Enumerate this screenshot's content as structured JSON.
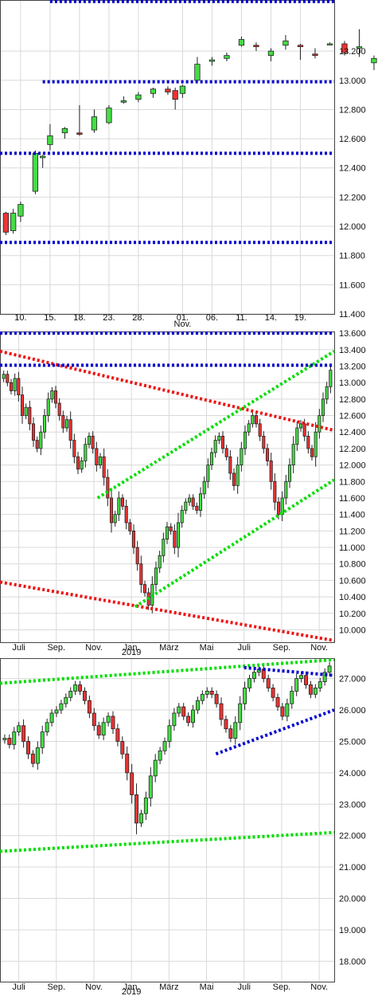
{
  "chart_data": [
    {
      "type": "candlestick",
      "title": "",
      "y_ticks": [
        "13.200",
        "13.000",
        "12.800",
        "12.600",
        "12.400",
        "12.200",
        "12.000",
        "11.800",
        "11.600",
        "11.400"
      ],
      "ylim": [
        11.4,
        13.55
      ],
      "x_tick_labels": [
        {
          "label": "10.",
          "day": 2
        },
        {
          "label": "15.",
          "day": 4
        },
        {
          "label": "18.",
          "day": 6
        },
        {
          "label": "23.",
          "day": 8
        },
        {
          "label": "28.",
          "day": 10
        },
        {
          "label": "01.",
          "day": 13
        },
        {
          "label": "06.",
          "day": 15
        },
        {
          "label": "11.",
          "day": 17
        },
        {
          "label": "14.",
          "day": 19
        },
        {
          "label": "19.",
          "day": 21
        }
      ],
      "x_sub_labels": [
        {
          "label": "Nov.",
          "day": 13
        }
      ],
      "x_range": [
        0.6,
        23.3
      ],
      "candles": [
        {
          "d": 1,
          "o": 12.09,
          "h": 12.1,
          "l": 11.94,
          "c": 11.96
        },
        {
          "d": 1.5,
          "o": 11.97,
          "h": 12.12,
          "l": 11.95,
          "c": 12.09
        },
        {
          "d": 2,
          "o": 12.07,
          "h": 12.17,
          "l": 12.03,
          "c": 12.15
        },
        {
          "d": 3,
          "o": 12.24,
          "h": 12.52,
          "l": 12.22,
          "c": 12.5
        },
        {
          "d": 3.5,
          "o": 12.47,
          "h": 12.49,
          "l": 12.4,
          "c": 12.48
        },
        {
          "d": 4,
          "o": 12.56,
          "h": 12.7,
          "l": 12.52,
          "c": 12.62
        },
        {
          "d": 5,
          "o": 12.64,
          "h": 12.68,
          "l": 12.6,
          "c": 12.67
        },
        {
          "d": 6,
          "o": 12.64,
          "h": 12.83,
          "l": 12.62,
          "c": 12.63
        },
        {
          "d": 7,
          "o": 12.66,
          "h": 12.8,
          "l": 12.64,
          "c": 12.75
        },
        {
          "d": 8,
          "o": 12.71,
          "h": 12.83,
          "l": 12.7,
          "c": 12.81
        },
        {
          "d": 9,
          "o": 12.85,
          "h": 12.89,
          "l": 12.84,
          "c": 12.86
        },
        {
          "d": 10,
          "o": 12.87,
          "h": 12.92,
          "l": 12.85,
          "c": 12.9
        },
        {
          "d": 11,
          "o": 12.91,
          "h": 12.95,
          "l": 12.88,
          "c": 12.94
        },
        {
          "d": 12,
          "o": 12.94,
          "h": 12.96,
          "l": 12.9,
          "c": 12.92
        },
        {
          "d": 12.5,
          "o": 12.93,
          "h": 12.95,
          "l": 12.8,
          "c": 12.87
        },
        {
          "d": 13,
          "o": 12.91,
          "h": 12.97,
          "l": 12.88,
          "c": 12.96
        },
        {
          "d": 14,
          "o": 13.0,
          "h": 13.16,
          "l": 12.98,
          "c": 13.11
        },
        {
          "d": 15,
          "o": 13.13,
          "h": 13.16,
          "l": 13.1,
          "c": 13.14
        },
        {
          "d": 16,
          "o": 13.15,
          "h": 13.19,
          "l": 13.13,
          "c": 13.17
        },
        {
          "d": 17,
          "o": 13.24,
          "h": 13.3,
          "l": 13.23,
          "c": 13.28
        },
        {
          "d": 18,
          "o": 13.24,
          "h": 13.26,
          "l": 13.2,
          "c": 13.23
        },
        {
          "d": 19,
          "o": 13.17,
          "h": 13.22,
          "l": 13.13,
          "c": 13.2
        },
        {
          "d": 20,
          "o": 13.24,
          "h": 13.31,
          "l": 13.21,
          "c": 13.27
        },
        {
          "d": 21,
          "o": 13.24,
          "h": 13.25,
          "l": 13.14,
          "c": 13.23
        },
        {
          "d": 22,
          "o": 13.18,
          "h": 13.22,
          "l": 13.15,
          "c": 13.17
        },
        {
          "d": 23,
          "o": 13.25,
          "h": 13.26,
          "l": 13.24,
          "c": 13.25
        },
        {
          "d": 24,
          "o": 13.25,
          "h": 13.27,
          "l": 13.17,
          "c": 13.19
        },
        {
          "d": 25,
          "o": 13.22,
          "h": 13.35,
          "l": 13.16,
          "c": 13.23
        },
        {
          "d": 26,
          "o": 13.12,
          "h": 13.17,
          "l": 13.07,
          "c": 13.15
        }
      ],
      "lines": [
        {
          "color": "#0000cc",
          "style": "dotted",
          "points": [
            [
              4,
              13.54
            ],
            [
              23.3,
              13.54
            ]
          ]
        },
        {
          "color": "#0000cc",
          "style": "dotted",
          "points": [
            [
              3.5,
              12.99
            ],
            [
              23.3,
              12.99
            ]
          ]
        },
        {
          "color": "#0000cc",
          "style": "dotted",
          "points": [
            [
              0.6,
              12.5
            ],
            [
              23.3,
              12.5
            ]
          ]
        },
        {
          "color": "#0000cc",
          "style": "dotted",
          "points": [
            [
              0.6,
              11.89
            ],
            [
              23.3,
              11.89
            ]
          ]
        }
      ]
    },
    {
      "type": "candlestick",
      "title": "",
      "y_ticks": [
        "13.600",
        "13.400",
        "13.200",
        "13.000",
        "12.800",
        "12.600",
        "12.400",
        "12.200",
        "12.000",
        "11.800",
        "11.600",
        "11.400",
        "11.200",
        "11.000",
        "10.800",
        "10.600",
        "10.400",
        "10.200",
        "10.000"
      ],
      "ylim": [
        9.85,
        13.62
      ],
      "x_tick_labels": [
        {
          "label": "Juli",
          "month": 1
        },
        {
          "label": "Sep.",
          "month": 3
        },
        {
          "label": "Nov.",
          "month": 5
        },
        {
          "label": "Jan.",
          "month": 7
        },
        {
          "label": "März",
          "month": 9
        },
        {
          "label": "Mai",
          "month": 11
        },
        {
          "label": "Juli",
          "month": 13
        },
        {
          "label": "Sep.",
          "month": 15
        },
        {
          "label": "Nov.",
          "month": 17
        }
      ],
      "x_sub_labels": [
        {
          "label": "2019",
          "month": 7
        }
      ],
      "x_range": [
        0,
        17.8
      ],
      "closes": [
        13.1,
        13.0,
        12.9,
        13.05,
        12.85,
        12.6,
        12.7,
        12.5,
        12.3,
        12.2,
        12.4,
        12.6,
        12.8,
        12.9,
        12.75,
        12.6,
        12.45,
        12.55,
        12.3,
        12.1,
        11.95,
        12.05,
        12.25,
        12.35,
        12.2,
        12.0,
        12.1,
        11.85,
        11.6,
        11.3,
        11.4,
        11.6,
        11.5,
        11.3,
        11.2,
        11.0,
        10.8,
        10.55,
        10.45,
        10.3,
        10.55,
        10.75,
        10.9,
        11.1,
        11.25,
        11.2,
        11.0,
        11.3,
        11.45,
        11.55,
        11.6,
        11.5,
        11.45,
        11.65,
        11.8,
        12.0,
        12.15,
        12.3,
        12.35,
        12.2,
        12.1,
        11.9,
        11.75,
        12.0,
        12.2,
        12.4,
        12.5,
        12.6,
        12.5,
        12.35,
        12.2,
        12.05,
        11.8,
        11.55,
        11.4,
        11.6,
        11.8,
        12.0,
        12.25,
        12.45,
        12.5,
        12.35,
        12.2,
        12.1,
        12.4,
        12.6,
        12.8,
        12.95,
        13.15
      ],
      "lines": [
        {
          "color": "#ee1111",
          "style": "dotted",
          "points": [
            [
              0,
              13.38
            ],
            [
              17.8,
              12.42
            ]
          ]
        },
        {
          "color": "#ee1111",
          "style": "dotted",
          "points": [
            [
              0,
              10.58
            ],
            [
              17.8,
              9.87
            ]
          ]
        },
        {
          "color": "#00dd00",
          "style": "dotted",
          "points": [
            [
              5.2,
              11.6
            ],
            [
              17.8,
              13.38
            ]
          ]
        },
        {
          "color": "#00dd00",
          "style": "dotted",
          "points": [
            [
              7.2,
              10.28
            ],
            [
              17.8,
              11.82
            ]
          ]
        },
        {
          "color": "#0000cc",
          "style": "dotted",
          "points": [
            [
              0,
              13.6
            ],
            [
              17.8,
              13.6
            ]
          ]
        },
        {
          "color": "#0000cc",
          "style": "dotted",
          "points": [
            [
              0,
              13.21
            ],
            [
              17.8,
              13.21
            ]
          ]
        }
      ]
    },
    {
      "type": "candlestick",
      "title": "",
      "y_ticks": [
        "27.000",
        "26.000",
        "25.000",
        "24.000",
        "23.000",
        "22.000",
        "21.000",
        "20.000",
        "19.000",
        "18.000"
      ],
      "ylim": [
        17.35,
        27.65
      ],
      "x_tick_labels": [
        {
          "label": "Juli",
          "month": 1
        },
        {
          "label": "Sep.",
          "month": 3
        },
        {
          "label": "Nov.",
          "month": 5
        },
        {
          "label": "Jan.",
          "month": 7
        },
        {
          "label": "März",
          "month": 9
        },
        {
          "label": "Mai",
          "month": 11
        },
        {
          "label": "Juli",
          "month": 13
        },
        {
          "label": "Sep.",
          "month": 15
        },
        {
          "label": "Nov.",
          "month": 17
        }
      ],
      "x_sub_labels": [
        {
          "label": "2019",
          "month": 7
        }
      ],
      "x_range": [
        0,
        17.8
      ],
      "closes": [
        25.1,
        24.9,
        25.3,
        25.5,
        25.0,
        24.6,
        24.3,
        24.8,
        25.3,
        25.6,
        25.9,
        26.0,
        26.2,
        26.4,
        26.6,
        26.8,
        26.6,
        26.3,
        25.9,
        25.5,
        25.2,
        25.6,
        25.8,
        25.4,
        25.0,
        24.6,
        24.0,
        23.3,
        22.4,
        22.7,
        23.2,
        23.9,
        24.4,
        24.7,
        25.0,
        25.5,
        25.9,
        26.1,
        25.8,
        25.6,
        26.0,
        26.3,
        26.5,
        26.6,
        26.5,
        26.2,
        25.7,
        25.4,
        25.1,
        25.6,
        26.2,
        26.7,
        27.0,
        27.2,
        27.3,
        27.0,
        26.7,
        26.4,
        26.1,
        25.8,
        26.2,
        26.6,
        27.0,
        27.1,
        26.8,
        26.5,
        26.7,
        26.9,
        27.2,
        27.4
      ],
      "lines": [
        {
          "color": "#00dd00",
          "style": "dotted",
          "points": [
            [
              0,
              26.85
            ],
            [
              17.8,
              27.6
            ]
          ]
        },
        {
          "color": "#00dd00",
          "style": "dotted",
          "points": [
            [
              0,
              21.5
            ],
            [
              17.8,
              22.1
            ]
          ]
        },
        {
          "color": "#0000cc",
          "style": "dotted",
          "points": [
            [
              11.5,
              24.6
            ],
            [
              17.8,
              26.0
            ]
          ]
        },
        {
          "color": "#0000cc",
          "style": "dotted",
          "points": [
            [
              13.0,
              27.35
            ],
            [
              17.8,
              27.1
            ]
          ]
        }
      ]
    }
  ]
}
